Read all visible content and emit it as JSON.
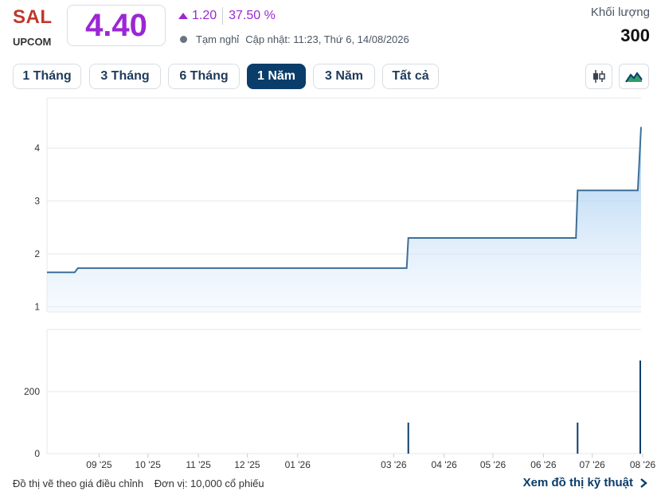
{
  "header": {
    "ticker": "SAL",
    "exchange": "UPCOM",
    "price": "4.40",
    "change": "1.20",
    "change_pct": "37.50 %",
    "status": "Tạm nghỉ",
    "updated": "Cập nhật: 11:23, Thứ 6, 14/08/2026",
    "volume_label": "Khối lượng",
    "volume_value": "300"
  },
  "colors": {
    "up": "#9b27d4",
    "ticker": "#c0392b",
    "accent": "#0b3d6b",
    "line": "#3e6f97",
    "fill": "#9cc8f0",
    "grid": "#e5e7eb"
  },
  "range_buttons": [
    "1 Tháng",
    "3 Tháng",
    "6 Tháng",
    "1 Năm",
    "3 Năm",
    "Tất cả"
  ],
  "active_range": "1 Năm",
  "chart_type_icons": [
    "candlestick-icon",
    "area-chart-icon"
  ],
  "chart_data": [
    {
      "type": "area",
      "x_labels": [
        "09 '25",
        "10 '25",
        "11 '25",
        "12 '25",
        "01 '26",
        "03 '26",
        "04 '26",
        "05 '26",
        "06 '26",
        "07 '26",
        "08 '26"
      ],
      "y_ticks": [
        1,
        2,
        3,
        4
      ],
      "ylim": [
        0.9,
        4.95
      ],
      "series": [
        {
          "points": [
            [
              "2025-08-14",
              1.65
            ],
            [
              "2025-08-31",
              1.65
            ],
            [
              "2025-09-02",
              1.73
            ],
            [
              "2026-03-23",
              1.73
            ],
            [
              "2026-03-24",
              2.3
            ],
            [
              "2026-07-05",
              2.3
            ],
            [
              "2026-07-06",
              3.2
            ],
            [
              "2026-08-12",
              3.2
            ],
            [
              "2026-08-14",
              4.4
            ]
          ]
        }
      ]
    },
    {
      "type": "bar",
      "y_ticks": [
        0,
        200
      ],
      "ylim": [
        0,
        400
      ],
      "bars": [
        [
          "2026-03-24",
          100
        ],
        [
          "2026-07-06",
          100
        ],
        [
          "2026-08-14",
          300
        ]
      ]
    }
  ],
  "footer": {
    "note": "Đồ thị vẽ theo giá điều chỉnh",
    "unit": "Đơn vị: 10,000 cổ phiếu",
    "link": "Xem đồ thị kỹ thuật"
  }
}
